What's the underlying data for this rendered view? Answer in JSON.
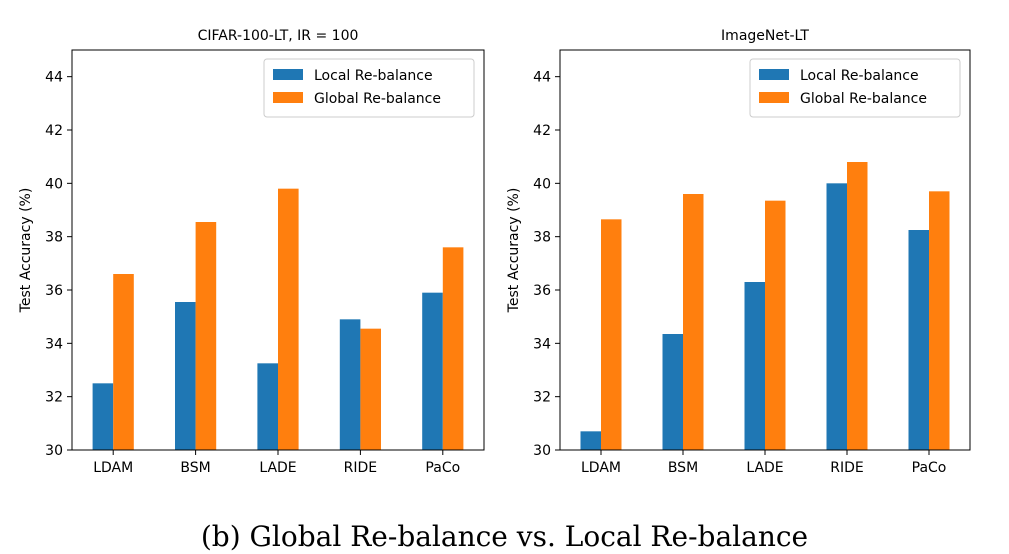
{
  "caption": "(b) Global Re-balance vs. Local Re-balance",
  "colors": {
    "local": "#1f77b4",
    "global": "#ff7f0e"
  },
  "chart_data": [
    {
      "type": "bar",
      "title": "CIFAR-100-LT, IR = 100",
      "xlabel": "",
      "ylabel": "Test Accuracy (%)",
      "categories": [
        "LDAM",
        "BSM",
        "LADE",
        "RIDE",
        "PaCo"
      ],
      "ylim": [
        30,
        45
      ],
      "yticks": [
        30,
        32,
        34,
        36,
        38,
        40,
        42,
        44
      ],
      "legend_position": "top-right",
      "grid": false,
      "series": [
        {
          "name": "Local Re-balance",
          "values": [
            32.5,
            35.55,
            33.25,
            34.9,
            35.9
          ]
        },
        {
          "name": "Global Re-balance",
          "values": [
            36.6,
            38.55,
            39.8,
            34.55,
            37.6
          ]
        }
      ]
    },
    {
      "type": "bar",
      "title": "ImageNet-LT",
      "xlabel": "",
      "ylabel": "Test Accuracy (%)",
      "categories": [
        "LDAM",
        "BSM",
        "LADE",
        "RIDE",
        "PaCo"
      ],
      "ylim": [
        30,
        45
      ],
      "yticks": [
        30,
        32,
        34,
        36,
        38,
        40,
        42,
        44
      ],
      "legend_position": "top-right",
      "grid": false,
      "series": [
        {
          "name": "Local Re-balance",
          "values": [
            30.7,
            34.35,
            36.3,
            40.0,
            38.25
          ]
        },
        {
          "name": "Global Re-balance",
          "values": [
            38.65,
            39.6,
            39.35,
            40.8,
            39.7
          ]
        }
      ]
    }
  ]
}
